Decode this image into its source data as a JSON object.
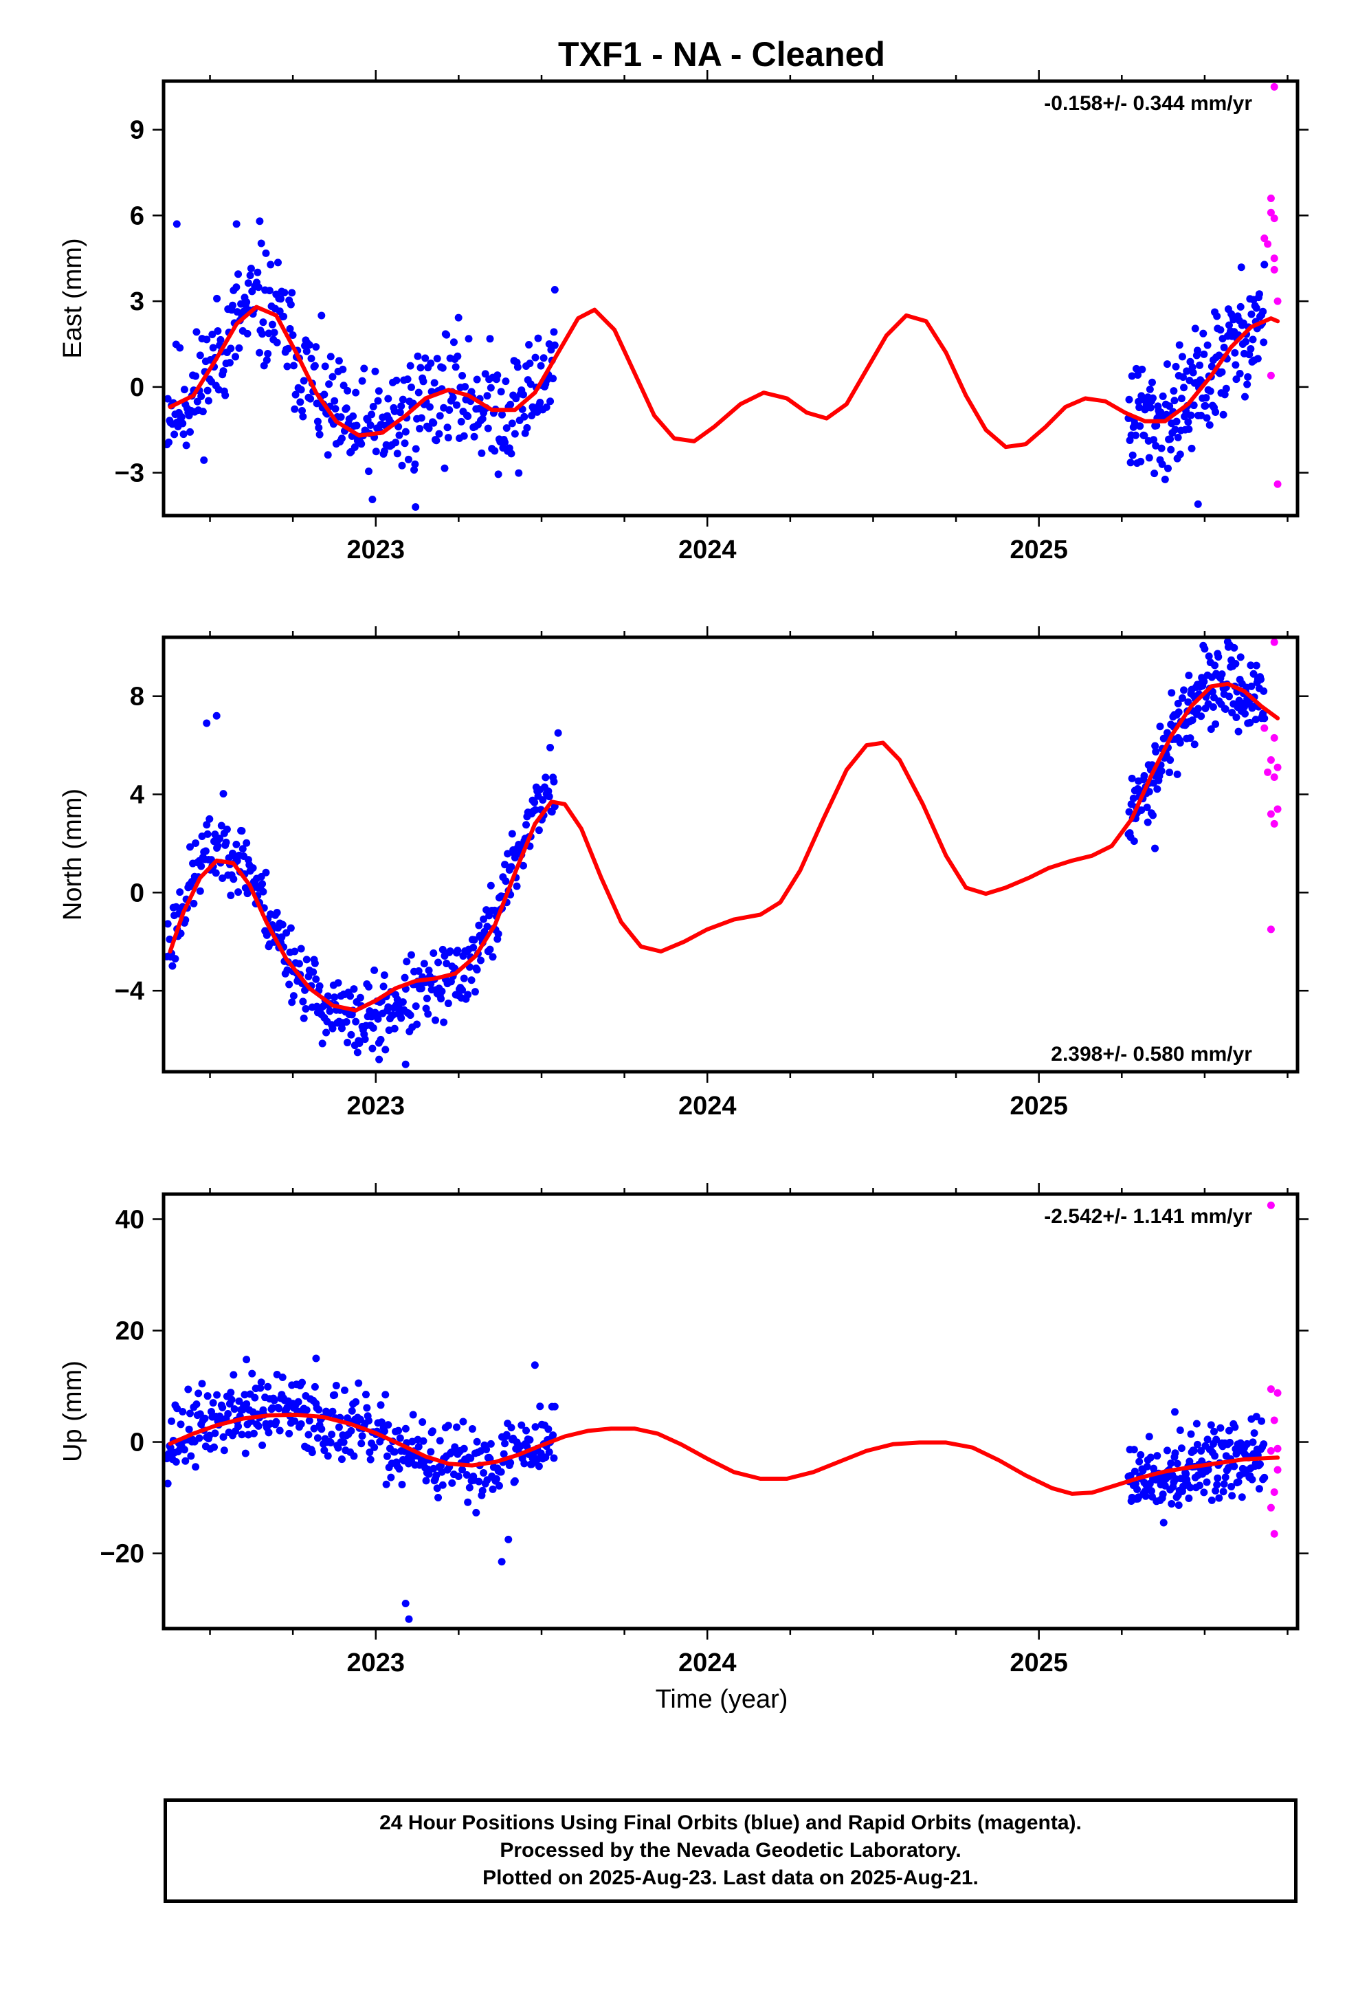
{
  "title": "TXF1  - NA - Cleaned",
  "xlabel": "Time (year)",
  "footer": {
    "line1": "24 Hour Positions Using Final Orbits (blue) and Rapid Orbits (magenta).",
    "line2": "Processed by the Nevada Geodetic Laboratory.",
    "line3": "Plotted on 2025-Aug-23. Last data on 2025-Aug-21."
  },
  "colors": {
    "final": "#0000ff",
    "rapid": "#ff00ff",
    "fit": "#ff0000",
    "axes": "#000000"
  },
  "chart_data": [
    {
      "type": "scatter",
      "name": "east",
      "ylabel": "East (mm)",
      "rate": "-0.158+/- 0.344 mm/yr",
      "rate_placement": "top-right",
      "xlim": [
        2022.36,
        2025.78
      ],
      "ylim": [
        -4.5,
        10.7
      ],
      "x_ticks": [
        2023,
        2024,
        2025
      ],
      "y_ticks": [
        -3,
        0,
        3,
        6,
        9
      ],
      "final_span": [
        [
          2022.37,
          2023.54
        ],
        [
          2025.27,
          2025.68
        ]
      ],
      "final_count": [
        420,
        190
      ],
      "final_seed": 11,
      "final_noise": 1.3,
      "final_offset": 0.0,
      "final_outliers": [
        [
          2022.4,
          5.7
        ],
        [
          2022.65,
          5.8
        ],
        [
          2022.58,
          5.7
        ],
        [
          2023.12,
          -4.2
        ],
        [
          2025.48,
          -4.1
        ],
        [
          2023.54,
          3.4
        ]
      ],
      "fit_curve": [
        [
          2022.38,
          -0.7
        ],
        [
          2022.45,
          -0.3
        ],
        [
          2022.52,
          1.0
        ],
        [
          2022.58,
          2.2
        ],
        [
          2022.64,
          2.8
        ],
        [
          2022.7,
          2.5
        ],
        [
          2022.76,
          1.2
        ],
        [
          2022.82,
          -0.2
        ],
        [
          2022.88,
          -1.2
        ],
        [
          2022.95,
          -1.7
        ],
        [
          2023.02,
          -1.6
        ],
        [
          2023.09,
          -1.0
        ],
        [
          2023.15,
          -0.4
        ],
        [
          2023.22,
          -0.1
        ],
        [
          2023.28,
          -0.3
        ],
        [
          2023.35,
          -0.8
        ],
        [
          2023.42,
          -0.8
        ],
        [
          2023.48,
          -0.2
        ],
        [
          2023.55,
          1.2
        ],
        [
          2023.61,
          2.4
        ],
        [
          2023.66,
          2.7
        ],
        [
          2023.72,
          2.0
        ],
        [
          2023.78,
          0.5
        ],
        [
          2023.84,
          -1.0
        ],
        [
          2023.9,
          -1.8
        ],
        [
          2023.96,
          -1.9
        ],
        [
          2024.02,
          -1.4
        ],
        [
          2024.1,
          -0.6
        ],
        [
          2024.17,
          -0.2
        ],
        [
          2024.24,
          -0.4
        ],
        [
          2024.3,
          -0.9
        ],
        [
          2024.36,
          -1.1
        ],
        [
          2024.42,
          -0.6
        ],
        [
          2024.48,
          0.6
        ],
        [
          2024.54,
          1.8
        ],
        [
          2024.6,
          2.5
        ],
        [
          2024.66,
          2.3
        ],
        [
          2024.72,
          1.2
        ],
        [
          2024.78,
          -0.3
        ],
        [
          2024.84,
          -1.5
        ],
        [
          2024.9,
          -2.1
        ],
        [
          2024.96,
          -2.0
        ],
        [
          2025.02,
          -1.4
        ],
        [
          2025.08,
          -0.7
        ],
        [
          2025.14,
          -0.4
        ],
        [
          2025.2,
          -0.5
        ],
        [
          2025.26,
          -0.9
        ],
        [
          2025.32,
          -1.2
        ],
        [
          2025.38,
          -1.2
        ],
        [
          2025.45,
          -0.6
        ],
        [
          2025.52,
          0.4
        ],
        [
          2025.58,
          1.4
        ],
        [
          2025.64,
          2.1
        ],
        [
          2025.7,
          2.4
        ],
        [
          2025.72,
          2.3
        ]
      ],
      "rapid_points": [
        [
          2025.71,
          10.5
        ],
        [
          2025.7,
          6.6
        ],
        [
          2025.7,
          6.1
        ],
        [
          2025.71,
          5.9
        ],
        [
          2025.68,
          5.2
        ],
        [
          2025.69,
          5.0
        ],
        [
          2025.71,
          4.5
        ],
        [
          2025.71,
          4.1
        ],
        [
          2025.72,
          3.0
        ],
        [
          2025.7,
          0.4
        ],
        [
          2025.72,
          -3.4
        ]
      ]
    },
    {
      "type": "scatter",
      "name": "north",
      "ylabel": "North (mm)",
      "rate": "2.398+/- 0.580 mm/yr",
      "rate_placement": "bottom-right",
      "xlim": [
        2022.36,
        2025.78
      ],
      "ylim": [
        -7.3,
        10.4
      ],
      "x_ticks": [
        2023,
        2024,
        2025
      ],
      "y_ticks": [
        -4,
        0,
        4,
        8
      ],
      "final_span": [
        [
          2022.37,
          2023.54
        ],
        [
          2025.27,
          2025.68
        ]
      ],
      "final_count": [
        420,
        190
      ],
      "final_seed": 23,
      "final_noise": 0.95,
      "final_offset": 1.3,
      "final_outliers": [
        [
          2022.52,
          7.2
        ],
        [
          2022.49,
          6.9
        ],
        [
          2023.09,
          -7.0
        ],
        [
          2023.01,
          -6.8
        ],
        [
          2023.55,
          6.5
        ],
        [
          2025.42,
          7.7
        ],
        [
          2025.35,
          1.8
        ]
      ],
      "fit_curve": [
        [
          2022.38,
          -2.4
        ],
        [
          2022.42,
          -0.8
        ],
        [
          2022.47,
          0.6
        ],
        [
          2022.52,
          1.3
        ],
        [
          2022.57,
          1.2
        ],
        [
          2022.62,
          0.3
        ],
        [
          2022.67,
          -1.2
        ],
        [
          2022.73,
          -2.7
        ],
        [
          2022.8,
          -3.9
        ],
        [
          2022.87,
          -4.6
        ],
        [
          2022.94,
          -4.8
        ],
        [
          2023.0,
          -4.4
        ],
        [
          2023.06,
          -3.9
        ],
        [
          2023.12,
          -3.6
        ],
        [
          2023.18,
          -3.5
        ],
        [
          2023.24,
          -3.3
        ],
        [
          2023.3,
          -2.6
        ],
        [
          2023.36,
          -1.3
        ],
        [
          2023.42,
          0.8
        ],
        [
          2023.48,
          2.8
        ],
        [
          2023.53,
          3.7
        ],
        [
          2023.57,
          3.6
        ],
        [
          2023.62,
          2.6
        ],
        [
          2023.68,
          0.6
        ],
        [
          2023.74,
          -1.2
        ],
        [
          2023.8,
          -2.2
        ],
        [
          2023.86,
          -2.4
        ],
        [
          2023.93,
          -2.0
        ],
        [
          2024.0,
          -1.5
        ],
        [
          2024.08,
          -1.1
        ],
        [
          2024.16,
          -0.9
        ],
        [
          2024.22,
          -0.4
        ],
        [
          2024.28,
          0.9
        ],
        [
          2024.35,
          3.0
        ],
        [
          2024.42,
          5.0
        ],
        [
          2024.48,
          6.0
        ],
        [
          2024.53,
          6.1
        ],
        [
          2024.58,
          5.4
        ],
        [
          2024.65,
          3.6
        ],
        [
          2024.72,
          1.5
        ],
        [
          2024.78,
          0.2
        ],
        [
          2024.84,
          -0.05
        ],
        [
          2024.9,
          0.2
        ],
        [
          2024.97,
          0.6
        ],
        [
          2025.03,
          1.0
        ],
        [
          2025.1,
          1.3
        ],
        [
          2025.16,
          1.5
        ],
        [
          2025.22,
          1.9
        ],
        [
          2025.28,
          3.0
        ],
        [
          2025.34,
          4.8
        ],
        [
          2025.4,
          6.4
        ],
        [
          2025.46,
          7.6
        ],
        [
          2025.52,
          8.4
        ],
        [
          2025.57,
          8.5
        ],
        [
          2025.62,
          8.2
        ],
        [
          2025.67,
          7.6
        ],
        [
          2025.72,
          7.1
        ]
      ],
      "rapid_points": [
        [
          2025.71,
          10.2
        ],
        [
          2025.68,
          6.7
        ],
        [
          2025.71,
          6.3
        ],
        [
          2025.7,
          5.4
        ],
        [
          2025.72,
          5.1
        ],
        [
          2025.69,
          4.9
        ],
        [
          2025.71,
          4.7
        ],
        [
          2025.72,
          3.4
        ],
        [
          2025.7,
          3.2
        ],
        [
          2025.71,
          2.8
        ],
        [
          2025.7,
          -1.5
        ]
      ]
    },
    {
      "type": "scatter",
      "name": "up",
      "ylabel": "Up (mm)",
      "rate": "-2.542+/- 1.141 mm/yr",
      "rate_placement": "top-right",
      "xlim": [
        2022.36,
        2025.78
      ],
      "ylim": [
        -33.5,
        44.5
      ],
      "x_ticks": [
        2023,
        2024,
        2025
      ],
      "y_ticks": [
        -20,
        0,
        20,
        40
      ],
      "final_span": [
        [
          2022.37,
          2023.54
        ],
        [
          2025.27,
          2025.68
        ]
      ],
      "final_count": [
        420,
        190
      ],
      "final_seed": 37,
      "final_noise": 4.2,
      "final_offset": 2.0,
      "final_outliers": [
        [
          2023.09,
          -29.0
        ],
        [
          2023.1,
          -31.8
        ],
        [
          2023.38,
          -21.5
        ],
        [
          2023.4,
          -17.5
        ],
        [
          2022.61,
          14.8
        ],
        [
          2022.82,
          15.0
        ],
        [
          2023.48,
          13.8
        ],
        [
          2025.41,
          5.4
        ]
      ],
      "fit_curve": [
        [
          2022.38,
          -0.3
        ],
        [
          2022.45,
          1.5
        ],
        [
          2022.52,
          3.0
        ],
        [
          2022.6,
          4.2
        ],
        [
          2022.68,
          4.8
        ],
        [
          2022.76,
          4.9
        ],
        [
          2022.84,
          4.5
        ],
        [
          2022.92,
          3.3
        ],
        [
          2023.0,
          1.6
        ],
        [
          2023.08,
          -0.6
        ],
        [
          2023.15,
          -2.6
        ],
        [
          2023.22,
          -3.9
        ],
        [
          2023.29,
          -4.2
        ],
        [
          2023.36,
          -3.6
        ],
        [
          2023.43,
          -2.3
        ],
        [
          2023.5,
          -0.6
        ],
        [
          2023.57,
          1.0
        ],
        [
          2023.64,
          2.0
        ],
        [
          2023.71,
          2.4
        ],
        [
          2023.78,
          2.4
        ],
        [
          2023.85,
          1.5
        ],
        [
          2023.92,
          -0.4
        ],
        [
          2024.0,
          -3.0
        ],
        [
          2024.08,
          -5.4
        ],
        [
          2024.16,
          -6.6
        ],
        [
          2024.24,
          -6.6
        ],
        [
          2024.32,
          -5.4
        ],
        [
          2024.4,
          -3.5
        ],
        [
          2024.48,
          -1.6
        ],
        [
          2024.56,
          -0.4
        ],
        [
          2024.64,
          -0.1
        ],
        [
          2024.72,
          -0.1
        ],
        [
          2024.8,
          -1.0
        ],
        [
          2024.88,
          -3.3
        ],
        [
          2024.96,
          -6.0
        ],
        [
          2025.04,
          -8.3
        ],
        [
          2025.1,
          -9.3
        ],
        [
          2025.16,
          -9.1
        ],
        [
          2025.22,
          -8.0
        ],
        [
          2025.3,
          -6.5
        ],
        [
          2025.38,
          -5.3
        ],
        [
          2025.46,
          -4.5
        ],
        [
          2025.54,
          -3.8
        ],
        [
          2025.62,
          -3.1
        ],
        [
          2025.72,
          -2.8
        ]
      ],
      "rapid_points": [
        [
          2025.7,
          42.5
        ],
        [
          2025.7,
          9.5
        ],
        [
          2025.72,
          8.8
        ],
        [
          2025.71,
          3.9
        ],
        [
          2025.72,
          -1.2
        ],
        [
          2025.7,
          -1.6
        ],
        [
          2025.72,
          -5.0
        ],
        [
          2025.71,
          -9.0
        ],
        [
          2025.7,
          -11.8
        ],
        [
          2025.71,
          -16.5
        ]
      ]
    }
  ]
}
